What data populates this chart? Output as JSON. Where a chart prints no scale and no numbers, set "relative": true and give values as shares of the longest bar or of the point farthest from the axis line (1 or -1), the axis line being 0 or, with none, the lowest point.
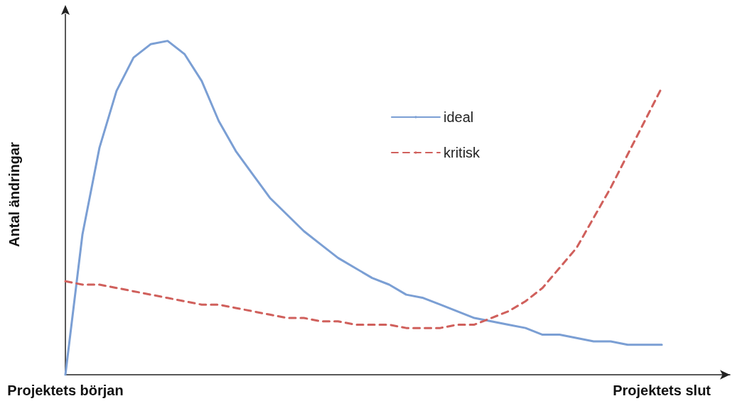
{
  "chart_data": {
    "type": "line",
    "relative": true,
    "ylabel": "Antal ändringar",
    "tick_labels": "x",
    "grid": false,
    "legend": "top",
    "marker": "none",
    "categories": [
      "Projektets början",
      null,
      null,
      null,
      null,
      null,
      null,
      null,
      null,
      null,
      null,
      null,
      null,
      null,
      null,
      null,
      null,
      null,
      null,
      null,
      null,
      null,
      null,
      null,
      null,
      null,
      null,
      null,
      null,
      null,
      null,
      null,
      null,
      null,
      null,
      "Projektets slut",
      null,
      null,
      null,
      null
    ],
    "series": [
      {
        "name": "ideal",
        "color": "#7b9fd4",
        "line_style": "solid",
        "values": [
          0,
          0.42,
          0.68,
          0.85,
          0.95,
          0.99,
          1,
          0.96,
          0.88,
          0.76,
          0.67,
          0.6,
          0.53,
          0.48,
          0.43,
          0.39,
          0.35,
          0.32,
          0.29,
          0.27,
          0.24,
          0.23,
          0.21,
          0.19,
          0.17,
          0.16,
          0.15,
          0.14,
          0.12,
          0.12,
          0.11,
          0.1,
          0.1,
          0.09,
          0.09,
          0.09,
          null,
          null,
          null,
          null
        ]
      },
      {
        "name": "kritisk",
        "color": "#d0605c",
        "line_style": "dashed",
        "values": [
          0.28,
          0.27,
          0.27,
          0.26,
          0.25,
          0.24,
          0.23,
          0.22,
          0.21,
          0.21,
          0.2,
          0.19,
          0.18,
          0.17,
          0.17,
          0.16,
          0.16,
          0.15,
          0.15,
          0.15,
          0.14,
          0.14,
          0.14,
          0.15,
          0.15,
          0.17,
          0.19,
          0.22,
          0.26,
          0.32,
          0.38,
          0.47,
          0.56,
          0.66,
          0.76,
          0.86,
          null,
          null,
          null,
          null
        ]
      }
    ]
  }
}
